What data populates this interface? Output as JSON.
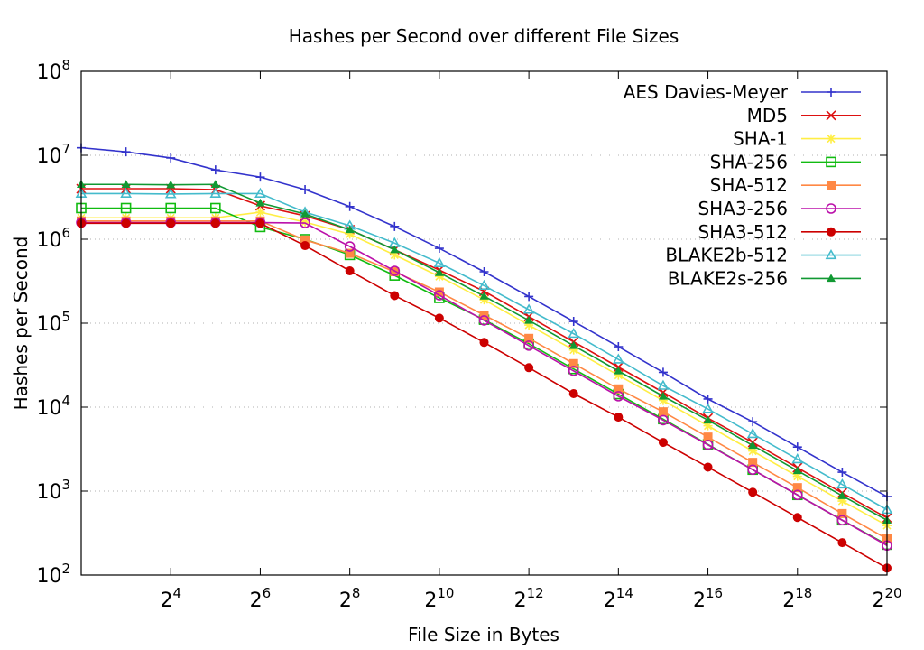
{
  "chart_data": {
    "type": "line",
    "title": "Hashes per Second over different File Sizes",
    "xlabel": "File Size in Bytes",
    "ylabel": "Hashes per Second",
    "x_scale": "log2",
    "y_scale": "log10",
    "x_unit": "Bytes",
    "xlim": [
      4,
      1048576
    ],
    "ylim": [
      100,
      100000000
    ],
    "x_ticks": [
      {
        "value": 16,
        "base": "2",
        "exp": "4"
      },
      {
        "value": 64,
        "base": "2",
        "exp": "6"
      },
      {
        "value": 256,
        "base": "2",
        "exp": "8"
      },
      {
        "value": 1024,
        "base": "2",
        "exp": "10"
      },
      {
        "value": 4096,
        "base": "2",
        "exp": "12"
      },
      {
        "value": 16384,
        "base": "2",
        "exp": "14"
      },
      {
        "value": 65536,
        "base": "2",
        "exp": "16"
      },
      {
        "value": 262144,
        "base": "2",
        "exp": "18"
      },
      {
        "value": 1048576,
        "base": "2",
        "exp": "20"
      }
    ],
    "y_ticks": [
      {
        "value": 100,
        "base": "10",
        "exp": "2"
      },
      {
        "value": 1000,
        "base": "10",
        "exp": "3"
      },
      {
        "value": 10000,
        "base": "10",
        "exp": "4"
      },
      {
        "value": 100000,
        "base": "10",
        "exp": "5"
      },
      {
        "value": 1000000,
        "base": "10",
        "exp": "6"
      },
      {
        "value": 10000000,
        "base": "10",
        "exp": "7"
      },
      {
        "value": 100000000,
        "base": "10",
        "exp": "8"
      }
    ],
    "grid": true,
    "legend_position": "top-right",
    "x": [
      4,
      8,
      16,
      32,
      64,
      128,
      256,
      512,
      1024,
      2048,
      4096,
      8192,
      16384,
      32768,
      65536,
      131072,
      262144,
      524288,
      1048576
    ],
    "series": [
      {
        "name": "AES Davies-Meyer",
        "color": "#3333cc",
        "marker": "plus",
        "values": [
          12300000,
          11000000,
          9300000,
          6700000,
          5500000,
          3900000,
          2450000,
          1420000,
          780000,
          410000,
          208000,
          105000,
          52500,
          26000,
          12500,
          6700,
          3350,
          1680,
          860
        ]
      },
      {
        "name": "MD5",
        "color": "#dd1111",
        "marker": "cross",
        "values": [
          4000000,
          4000000,
          4000000,
          3900000,
          2500000,
          1900000,
          1300000,
          750000,
          430000,
          240000,
          120000,
          60000,
          30000,
          15000,
          7400,
          3800,
          1900,
          950,
          480
        ]
      },
      {
        "name": "SHA-1",
        "color": "#ffee44",
        "marker": "star",
        "values": [
          1800000,
          1800000,
          1800000,
          1800000,
          2100000,
          1600000,
          1150000,
          650000,
          360000,
          190000,
          95000,
          48000,
          24000,
          12000,
          6000,
          3000,
          1500,
          760,
          390
        ]
      },
      {
        "name": "SHA-256",
        "color": "#11bb11",
        "marker": "box",
        "values": [
          2350000,
          2350000,
          2350000,
          2350000,
          1400000,
          1000000,
          650000,
          370000,
          200000,
          110000,
          57000,
          28500,
          14300,
          7200,
          3600,
          1800,
          900,
          450,
          230
        ]
      },
      {
        "name": "SHA-512",
        "color": "#ff8844",
        "marker": "filled-box",
        "values": [
          1650000,
          1650000,
          1650000,
          1650000,
          1650000,
          980000,
          680000,
          410000,
          235000,
          125000,
          66000,
          33000,
          16500,
          8800,
          4400,
          2200,
          1100,
          540,
          270
        ]
      },
      {
        "name": "SHA3-256",
        "color": "#bb11aa",
        "marker": "circle",
        "values": [
          1580000,
          1580000,
          1580000,
          1580000,
          1580000,
          1560000,
          820000,
          420000,
          215000,
          108000,
          54000,
          27000,
          13500,
          7000,
          3550,
          1800,
          900,
          450,
          225
        ]
      },
      {
        "name": "SHA3-512",
        "color": "#cc0000",
        "marker": "filled-circle",
        "values": [
          1550000,
          1550000,
          1550000,
          1550000,
          1550000,
          840000,
          420000,
          213000,
          115000,
          59000,
          29500,
          14500,
          7600,
          3800,
          1930,
          970,
          485,
          243,
          121
        ]
      },
      {
        "name": "BLAKE2b-512",
        "color": "#44bbcc",
        "marker": "triangle",
        "values": [
          3500000,
          3500000,
          3450000,
          3500000,
          3500000,
          2100000,
          1450000,
          900000,
          520000,
          280000,
          145000,
          75000,
          37000,
          18000,
          9500,
          4800,
          2400,
          1200,
          600
        ]
      },
      {
        "name": "BLAKE2s-256",
        "color": "#119933",
        "marker": "filled-triangle",
        "values": [
          4500000,
          4500000,
          4450000,
          4500000,
          2700000,
          2000000,
          1300000,
          750000,
          400000,
          210000,
          108000,
          54000,
          27000,
          13500,
          7000,
          3500,
          1750,
          880,
          450
        ]
      }
    ]
  }
}
